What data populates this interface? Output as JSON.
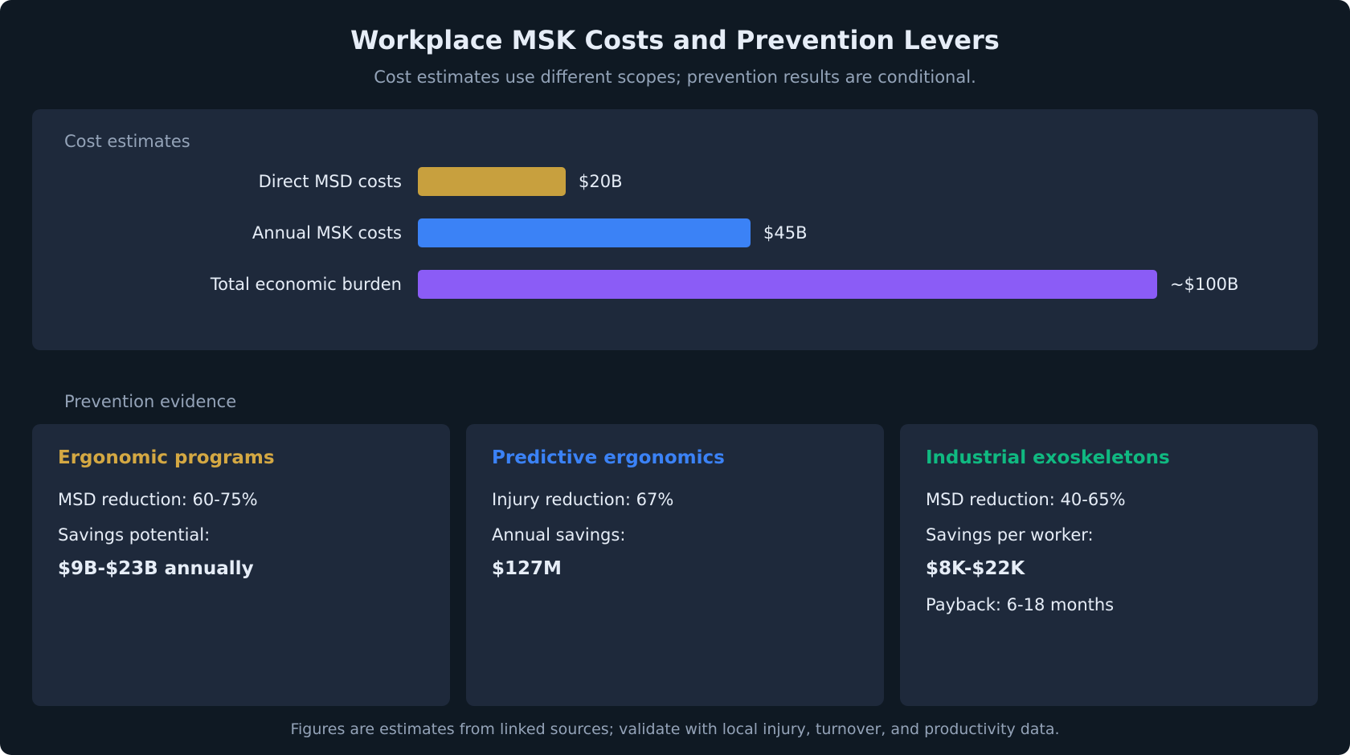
{
  "header": {
    "title": "Workplace MSK Costs and Prevention Levers",
    "subtitle": "Cost estimates use different scopes; prevention results are conditional."
  },
  "sections": {
    "cost_label": "Cost estimates",
    "prevention_label": "Prevention evidence"
  },
  "chart_data": {
    "type": "bar",
    "orientation": "horizontal",
    "categories": [
      "Direct MSD costs",
      "Annual MSK costs",
      "Total economic burden"
    ],
    "values": [
      20,
      45,
      100
    ],
    "value_labels": [
      "$20B",
      "$45B",
      "~$100B"
    ],
    "colors": [
      "#c8a03e",
      "#3b82f6",
      "#8b5cf6"
    ],
    "grid": false,
    "legend": false
  },
  "cards": [
    {
      "title": "Ergonomic programs",
      "color": "#d4a843",
      "line1": "MSD reduction: 60-75%",
      "line2": "Savings potential:",
      "highlight": "$9B-$23B annually",
      "line3": ""
    },
    {
      "title": "Predictive ergonomics",
      "color": "#3b82f6",
      "line1": "Injury reduction: 67%",
      "line2": "Annual savings:",
      "highlight": "$127M",
      "line3": ""
    },
    {
      "title": "Industrial exoskeletons",
      "color": "#10b981",
      "line1": "MSD reduction: 40-65%",
      "line2": "Savings per worker:",
      "highlight": "$8K-$22K",
      "line3": "Payback: 6-18 months"
    }
  ],
  "footnote": "Figures are estimates from linked sources; validate with local injury, turnover, and productivity data."
}
